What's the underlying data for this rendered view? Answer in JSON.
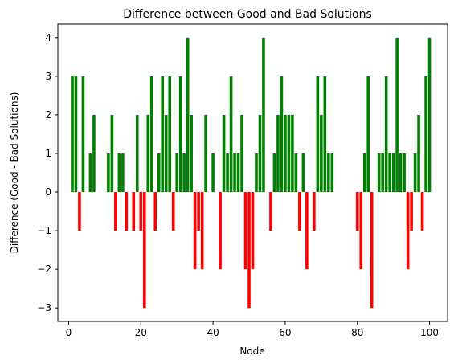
{
  "chart_data": {
    "type": "bar",
    "title": "Difference between Good and Bad Solutions",
    "xlabel": "Node",
    "ylabel": "Difference (Good - Bad Solutions)",
    "xlim": [
      -3,
      105
    ],
    "ylim": [
      -3.35,
      4.35
    ],
    "x_ticks": [
      0,
      20,
      40,
      60,
      80,
      100
    ],
    "y_ticks": [
      -3,
      -2,
      -1,
      0,
      1,
      2,
      3,
      4
    ],
    "grid": false,
    "legend": "none",
    "positive_color": "#008000",
    "negative_color": "#ff0000",
    "x": [
      1,
      2,
      3,
      4,
      5,
      6,
      7,
      8,
      9,
      10,
      11,
      12,
      13,
      14,
      15,
      16,
      17,
      18,
      19,
      20,
      21,
      22,
      23,
      24,
      25,
      26,
      27,
      28,
      29,
      30,
      31,
      32,
      33,
      34,
      35,
      36,
      37,
      38,
      39,
      40,
      41,
      42,
      43,
      44,
      45,
      46,
      47,
      48,
      49,
      50,
      51,
      52,
      53,
      54,
      55,
      56,
      57,
      58,
      59,
      60,
      61,
      62,
      63,
      64,
      65,
      66,
      67,
      68,
      69,
      70,
      71,
      72,
      73,
      74,
      75,
      76,
      77,
      78,
      79,
      80,
      81,
      82,
      83,
      84,
      85,
      86,
      87,
      88,
      89,
      90,
      91,
      92,
      93,
      94,
      95,
      96,
      97,
      98,
      99,
      100
    ],
    "values": [
      3,
      3,
      -1,
      3,
      0,
      1,
      2,
      0,
      0,
      0,
      1,
      2,
      -1,
      1,
      1,
      -1,
      0,
      -1,
      2,
      -1,
      -3,
      2,
      3,
      -1,
      1,
      3,
      2,
      3,
      -1,
      1,
      3,
      1,
      4,
      2,
      -2,
      -1,
      -2,
      2,
      0,
      1,
      0,
      -2,
      2,
      1,
      3,
      1,
      1,
      2,
      -2,
      -3,
      -2,
      1,
      2,
      4,
      0,
      -1,
      1,
      2,
      3,
      2,
      2,
      2,
      1,
      -1,
      1,
      -2,
      0,
      -1,
      3,
      2,
      3,
      1,
      1,
      0,
      0,
      0,
      0,
      0,
      0,
      -1,
      -2,
      1,
      3,
      -3,
      0,
      1,
      1,
      3,
      1,
      1,
      4,
      1,
      1,
      -2,
      -1,
      1,
      2,
      -1,
      3,
      4
    ]
  }
}
